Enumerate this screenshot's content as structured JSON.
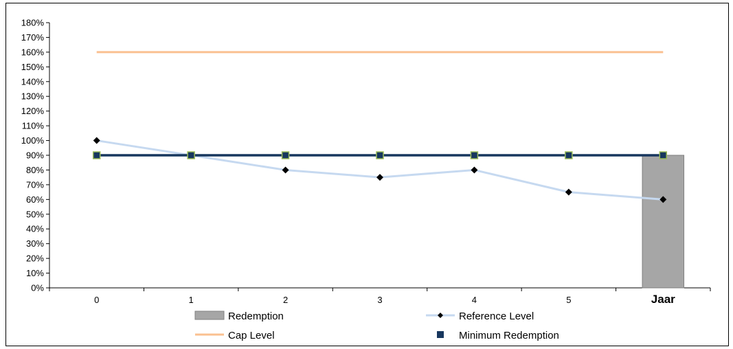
{
  "chart_data": {
    "type": "line",
    "x": [
      "0",
      "1",
      "2",
      "3",
      "4",
      "5",
      "Jaar"
    ],
    "ylim": [
      0,
      180
    ],
    "ytick_step": 10,
    "ytick_labels": [
      "0%",
      "10%",
      "20%",
      "30%",
      "40%",
      "50%",
      "60%",
      "70%",
      "80%",
      "90%",
      "100%",
      "110%",
      "120%",
      "130%",
      "140%",
      "150%",
      "160%",
      "170%",
      "180%"
    ],
    "grid": false,
    "legend_position": "bottom",
    "series": [
      {
        "name": "Redemption",
        "kind": "bar",
        "color": "#a6a6a6",
        "values": [
          null,
          null,
          null,
          null,
          null,
          null,
          90
        ]
      },
      {
        "name": "Reference Level",
        "kind": "line-marker",
        "color": "#c6d9f0",
        "marker_color": "#000000",
        "values": [
          100,
          90,
          80,
          75,
          80,
          65,
          60
        ]
      },
      {
        "name": "Cap Level",
        "kind": "line",
        "color": "#fac090",
        "values": [
          160,
          160,
          160,
          160,
          160,
          160,
          160
        ]
      },
      {
        "name": "Minimum Redemption",
        "kind": "line-marker",
        "color": "#17375e",
        "marker_color": "#9bbb59",
        "values": [
          90,
          90,
          90,
          90,
          90,
          90,
          90
        ]
      }
    ]
  }
}
